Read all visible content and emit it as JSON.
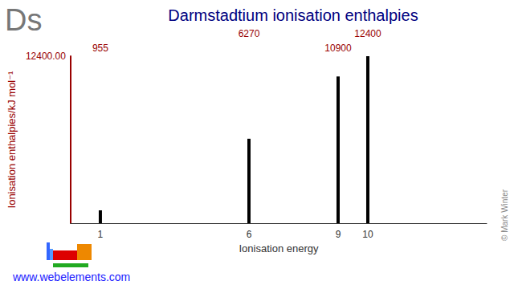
{
  "chart_data": {
    "type": "bar",
    "title": "Darmstadtium ionisation enthalpies",
    "x_label": "Ionisation energy",
    "y_label": "Ionisation enthalpies/kJ mol⁻¹",
    "x": [
      1,
      6,
      9,
      10
    ],
    "values": [
      955,
      6270,
      10900,
      12400
    ],
    "color": "#000000",
    "xlim": [
      0,
      14
    ],
    "xticks": [
      1,
      6,
      9,
      10
    ],
    "ylim": [
      0,
      12400
    ],
    "yticks": [
      {
        "value": 12400,
        "label": "12400.00"
      }
    ],
    "grid": false,
    "data_labels": true,
    "annotations": [
      "Ds",
      "www.webelements.com",
      "© Mark Winter"
    ]
  }
}
